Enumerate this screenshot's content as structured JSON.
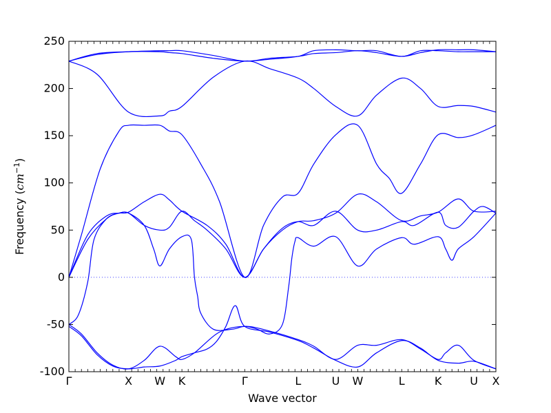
{
  "chart_data": {
    "type": "line",
    "title": "",
    "xlabel": "Wave vector",
    "ylabel": "Frequency (cm⁻¹)",
    "ylabel_base": "Frequency (",
    "ylabel_unit": "cm",
    "ylabel_exp": "−1",
    "ylabel_close": ")",
    "ylim": [
      -100,
      250
    ],
    "yticks": [
      -100,
      -50,
      0,
      50,
      100,
      150,
      200,
      250
    ],
    "xlim": [
      0,
      6.8
    ],
    "high_symmetry_points": [
      {
        "label": "Γ",
        "x": 0
      },
      {
        "label": "X",
        "x": 0.95
      },
      {
        "label": "W",
        "x": 1.45
      },
      {
        "label": "K",
        "x": 1.8
      },
      {
        "label": "Γ",
        "x": 2.8
      },
      {
        "label": "L",
        "x": 3.65
      },
      {
        "label": "U",
        "x": 4.25
      },
      {
        "label": "W",
        "x": 4.6
      },
      {
        "label": "L",
        "x": 5.3
      },
      {
        "label": "K",
        "x": 5.88
      },
      {
        "label": "U",
        "x": 6.45
      },
      {
        "label": "X",
        "x": 6.8
      }
    ],
    "zero_line": true,
    "grid": false,
    "series": [
      {
        "x": [
          0,
          0.45,
          0.95,
          1.45,
          1.6,
          1.8,
          2.3,
          2.8,
          3.2,
          3.65,
          3.9,
          4.25,
          4.6,
          4.9,
          5.3,
          5.6,
          5.88,
          6.2,
          6.45,
          6.8
        ],
        "values": [
          229,
          237,
          239,
          240,
          240,
          240,
          235,
          229,
          232,
          234,
          237,
          238,
          240,
          238,
          234,
          238,
          241,
          241,
          241,
          239
        ]
      },
      {
        "x": [
          0,
          0.45,
          0.95,
          1.45,
          1.6,
          1.8,
          2.3,
          2.8,
          3.2,
          3.65,
          3.9,
          4.25,
          4.6,
          4.9,
          5.3,
          5.6,
          5.88,
          6.2,
          6.45,
          6.8
        ],
        "values": [
          229,
          236,
          239,
          239,
          238,
          237,
          232,
          229,
          231,
          234,
          240,
          241,
          240,
          240,
          234,
          240,
          240,
          239,
          239,
          239
        ]
      },
      {
        "x": [
          0,
          0.45,
          0.95,
          1.45,
          1.6,
          1.8,
          2.3,
          2.8,
          3.2,
          3.65,
          3.9,
          4.25,
          4.6,
          4.9,
          5.3,
          5.6,
          5.88,
          6.2,
          6.45,
          6.8
        ],
        "values": [
          229,
          215,
          175,
          171,
          176,
          181,
          212,
          229,
          221,
          211,
          200,
          181,
          171,
          193,
          211,
          200,
          181,
          182,
          181,
          175
        ]
      },
      {
        "x": [
          0,
          0.2,
          0.5,
          0.8,
          0.95,
          1.2,
          1.45,
          1.6,
          1.8,
          2.1,
          2.4,
          2.8,
          3.1,
          3.4,
          3.65,
          3.9,
          4.25,
          4.6,
          4.9,
          5.1,
          5.3,
          5.6,
          5.88,
          6.2,
          6.45,
          6.8
        ],
        "values": [
          0,
          45,
          115,
          155,
          161,
          161,
          161,
          155,
          151,
          120,
          80,
          0,
          55,
          85,
          89,
          120,
          151,
          161,
          120,
          105,
          89,
          120,
          151,
          148,
          151,
          161
        ]
      },
      {
        "x": [
          0,
          0.3,
          0.6,
          0.8,
          0.95,
          1.2,
          1.45,
          1.6,
          1.8,
          2.2,
          2.5,
          2.8,
          3.1,
          3.4,
          3.65,
          3.9,
          4.25,
          4.6,
          4.9,
          5.3,
          5.6,
          5.88,
          6.2,
          6.45,
          6.8
        ],
        "values": [
          0,
          45,
          65,
          68,
          69,
          80,
          88,
          82,
          70,
          55,
          35,
          0,
          30,
          50,
          59,
          60,
          68,
          88,
          80,
          60,
          65,
          69,
          83,
          70,
          70
        ]
      },
      {
        "x": [
          0,
          0.3,
          0.6,
          0.8,
          0.95,
          1.2,
          1.45,
          1.6,
          1.8,
          2.0,
          2.2,
          2.5,
          2.8,
          3.1,
          3.4,
          3.65,
          3.9,
          4.25,
          4.6,
          4.9,
          5.3,
          5.5,
          5.88,
          6.0,
          6.2,
          6.45,
          6.6,
          6.8
        ],
        "values": [
          0,
          40,
          62,
          68,
          68,
          55,
          50,
          53,
          70,
          60,
          50,
          30,
          0,
          30,
          52,
          59,
          55,
          70,
          50,
          50,
          59,
          55,
          69,
          55,
          53,
          70,
          75,
          68
        ]
      },
      {
        "x": [
          0,
          0.15,
          0.3,
          0.4,
          0.6,
          0.8,
          0.95,
          1.2,
          1.35,
          1.45,
          1.6,
          1.8,
          1.95,
          2.0,
          2.05,
          2.1,
          2.3,
          2.6,
          2.8,
          3.0,
          3.2,
          3.4,
          3.5,
          3.55,
          3.6,
          3.65,
          3.9,
          4.25,
          4.6,
          4.9,
          5.3,
          5.5,
          5.88,
          6.0,
          6.1,
          6.2,
          6.45,
          6.8
        ],
        "values": [
          -50,
          -40,
          -5,
          40,
          62,
          68,
          68,
          55,
          30,
          12,
          30,
          43,
          40,
          0,
          -20,
          -38,
          -55,
          -55,
          -52,
          -55,
          -60,
          -50,
          -10,
          20,
          38,
          42,
          33,
          43,
          12,
          30,
          42,
          35,
          43,
          30,
          18,
          30,
          43,
          68
        ]
      },
      {
        "x": [
          0,
          0.2,
          0.45,
          0.7,
          0.95,
          1.2,
          1.45,
          1.7,
          1.8,
          2.0,
          2.4,
          2.8,
          3.2,
          3.65,
          3.9,
          4.25,
          4.6,
          4.9,
          5.3,
          5.6,
          5.88,
          6.0,
          6.2,
          6.45,
          6.8
        ],
        "values": [
          -50,
          -60,
          -80,
          -93,
          -97,
          -88,
          -73,
          -84,
          -87,
          -80,
          -58,
          -52,
          -57,
          -66,
          -73,
          -87,
          -72,
          -72,
          -66,
          -76,
          -87,
          -80,
          -72,
          -88,
          -97
        ]
      },
      {
        "x": [
          0,
          0.2,
          0.45,
          0.7,
          0.95,
          1.2,
          1.45,
          1.7,
          1.8,
          2.0,
          2.2,
          2.35,
          2.5,
          2.65,
          2.8,
          3.2,
          3.65,
          3.9,
          4.25,
          4.6,
          4.9,
          5.3,
          5.6,
          5.88,
          6.2,
          6.45,
          6.8
        ],
        "values": [
          -52,
          -62,
          -82,
          -94,
          -97,
          -95,
          -94,
          -88,
          -84,
          -80,
          -76,
          -68,
          -52,
          -30,
          -52,
          -58,
          -67,
          -75,
          -88,
          -95,
          -80,
          -67,
          -75,
          -88,
          -91,
          -89,
          -97
        ]
      }
    ]
  }
}
